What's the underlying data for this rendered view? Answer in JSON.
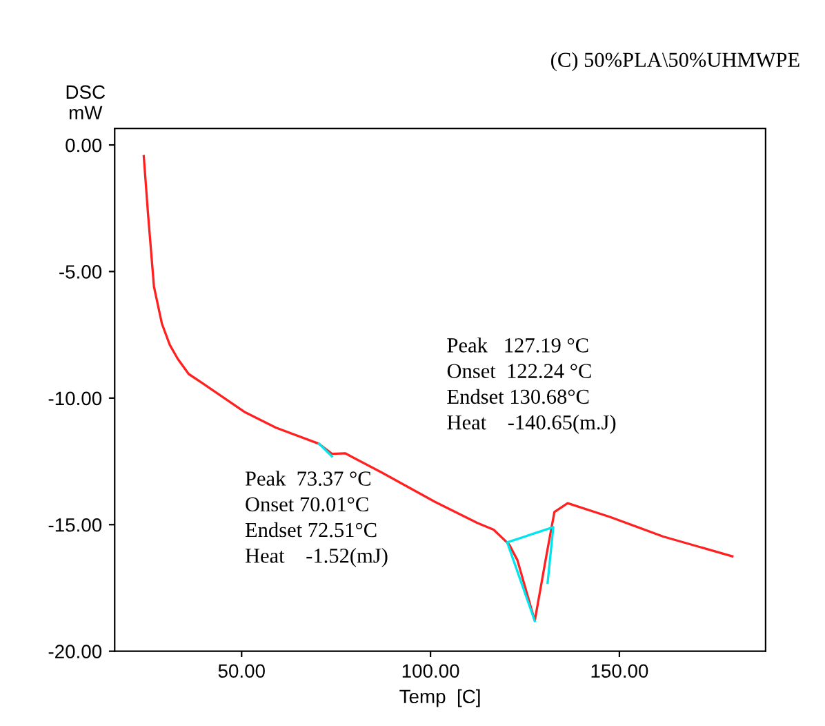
{
  "chart_data": {
    "type": "line",
    "title": "(C) 50%PLA\\50%UHMWPE",
    "xlabel": "Temp  [C]",
    "ylabel": "DSC\nmW",
    "xlim": [
      16.4,
      188.7
    ],
    "ylim": [
      -20,
      0.65
    ],
    "xticks": [
      {
        "value": 50,
        "label": "50.00"
      },
      {
        "value": 100,
        "label": "100.00"
      },
      {
        "value": 150,
        "label": "150.00"
      }
    ],
    "yticks": [
      {
        "value": -20,
        "label": "-20.00"
      },
      {
        "value": -15,
        "label": "-15.00"
      },
      {
        "value": -10,
        "label": "-10.00"
      },
      {
        "value": -5,
        "label": "-5.00"
      },
      {
        "value": 0,
        "label": "0.00"
      }
    ],
    "grid": false,
    "legend": false,
    "marker": "none",
    "line_style": "solid",
    "series": [
      {
        "color": "#ff2020",
        "x": [
          24.1,
          25.2,
          26.8,
          28.9,
          31.0,
          33.1,
          36.0,
          39.4,
          50.7,
          59.1,
          70.4,
          73.9,
          77.4,
          87.2,
          101.2,
          112.4,
          116.7,
          120.8,
          123.0,
          127.6,
          130.7,
          132.8,
          136.3,
          147.6,
          161.6,
          179.9
        ],
        "values": [
          -0.44,
          -2.67,
          -5.6,
          -7.06,
          -7.9,
          -8.45,
          -9.05,
          -9.39,
          -10.54,
          -11.17,
          -11.8,
          -12.2,
          -12.18,
          -12.95,
          -14.1,
          -14.93,
          -15.2,
          -15.78,
          -16.4,
          -18.8,
          -16.2,
          -14.5,
          -14.15,
          -14.7,
          -15.47,
          -16.25
        ]
      },
      {
        "color": "#00e5ee",
        "x": [
          70.5,
          73.9
        ],
        "values": [
          -11.8,
          -12.3
        ]
      },
      {
        "color": "#00e5ee",
        "x": [
          127.6,
          120.3,
          132.5,
          131.0
        ],
        "values": [
          -18.8,
          -15.7,
          -15.1,
          -17.3
        ]
      }
    ],
    "annotations": [
      "Peak  73.37 °C\nOnset 70.01°C\nEndset 72.51°C\nHeat    -1.52(mJ)",
      "Peak   127.19 °C\nOnset  122.24 °C\nEndset 130.68°C\nHeat    -140.65(m.J)"
    ]
  }
}
